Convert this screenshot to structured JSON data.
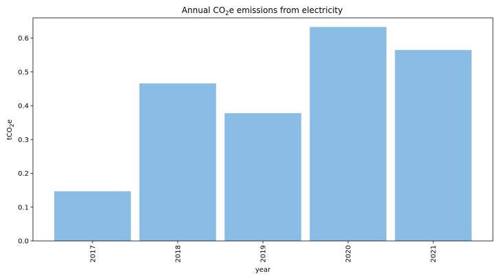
{
  "chart_data": {
    "type": "bar",
    "title": {
      "pre": "Annual CO",
      "sub": "2",
      "post": "e emissions from electricity"
    },
    "xlabel": "year",
    "ylabel": {
      "pre": "tCO",
      "sub": "2",
      "post": "e"
    },
    "categories": [
      "2017",
      "2018",
      "2019",
      "2020",
      "2021"
    ],
    "values": [
      0.147,
      0.466,
      0.378,
      0.633,
      0.565
    ],
    "ylim": [
      0,
      0.66
    ],
    "yticks": [
      "0.0",
      "0.1",
      "0.2",
      "0.3",
      "0.4",
      "0.5",
      "0.6"
    ],
    "bar_color": "#89bde5",
    "grid": false,
    "legend": "none",
    "xtick_rotation": "vertical"
  }
}
